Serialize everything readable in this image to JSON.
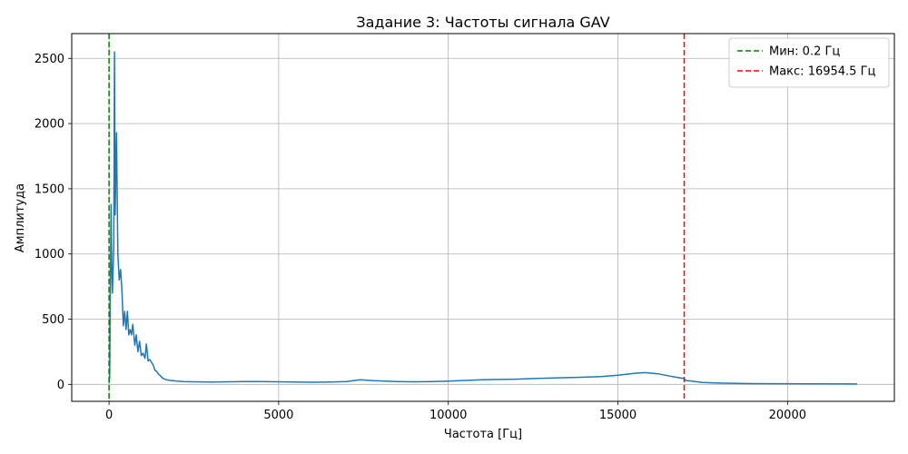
{
  "chart_data": {
    "type": "line",
    "title": "Задание 3: Частоты сигнала GAV",
    "xlabel": "Частота [Гц]",
    "ylabel": "Амплитуда",
    "xlim": [
      -1100,
      23150
    ],
    "ylim": [
      -130,
      2690
    ],
    "x_ticks": [
      0,
      5000,
      10000,
      15000,
      20000
    ],
    "y_ticks": [
      0,
      500,
      1000,
      1500,
      2000,
      2500
    ],
    "grid": true,
    "legend_position": "top-right",
    "series": [
      {
        "kind": "spectrum",
        "color": "#1f77b4",
        "x": [
          0,
          20,
          60,
          80,
          100,
          140,
          160,
          180,
          220,
          260,
          300,
          340,
          380,
          420,
          460,
          500,
          540,
          580,
          620,
          660,
          700,
          760,
          800,
          850,
          900,
          950,
          1000,
          1060,
          1100,
          1150,
          1200,
          1250,
          1300,
          1350,
          1400,
          1450,
          1500,
          1550,
          1600,
          1700,
          1800,
          1900,
          2000,
          2200,
          2500,
          3000,
          3500,
          4000,
          4500,
          5000,
          5500,
          6000,
          6500,
          7000,
          7400,
          7800,
          8500,
          9000,
          9500,
          10000,
          10500,
          11000,
          11500,
          12000,
          12500,
          13000,
          13500,
          14000,
          14500,
          15000,
          15500,
          15800,
          16200,
          16600,
          16950,
          17000,
          17500,
          18000,
          18500,
          19000,
          20000,
          21000,
          22050
        ],
        "y": [
          10,
          60,
          1380,
          900,
          700,
          1050,
          2550,
          1300,
          1930,
          1000,
          800,
          880,
          720,
          450,
          560,
          420,
          560,
          380,
          420,
          380,
          460,
          300,
          380,
          250,
          330,
          220,
          240,
          200,
          310,
          180,
          190,
          170,
          150,
          110,
          100,
          80,
          70,
          55,
          45,
          35,
          30,
          28,
          25,
          22,
          20,
          18,
          20,
          22,
          22,
          20,
          18,
          16,
          18,
          22,
          35,
          28,
          22,
          20,
          22,
          25,
          30,
          35,
          38,
          40,
          45,
          48,
          52,
          55,
          60,
          70,
          85,
          90,
          80,
          60,
          45,
          30,
          15,
          10,
          8,
          6,
          5,
          4,
          3
        ]
      },
      {
        "name": "Мин: 0.2 Гц",
        "kind": "vertical-line",
        "x_value": 0.2,
        "color": "#008000",
        "line_style": "dashed"
      },
      {
        "name": "Макс: 16954.5 Гц",
        "kind": "vertical-line",
        "x_value": 16954.5,
        "color": "#ff0000",
        "line_style": "dashed"
      }
    ]
  }
}
